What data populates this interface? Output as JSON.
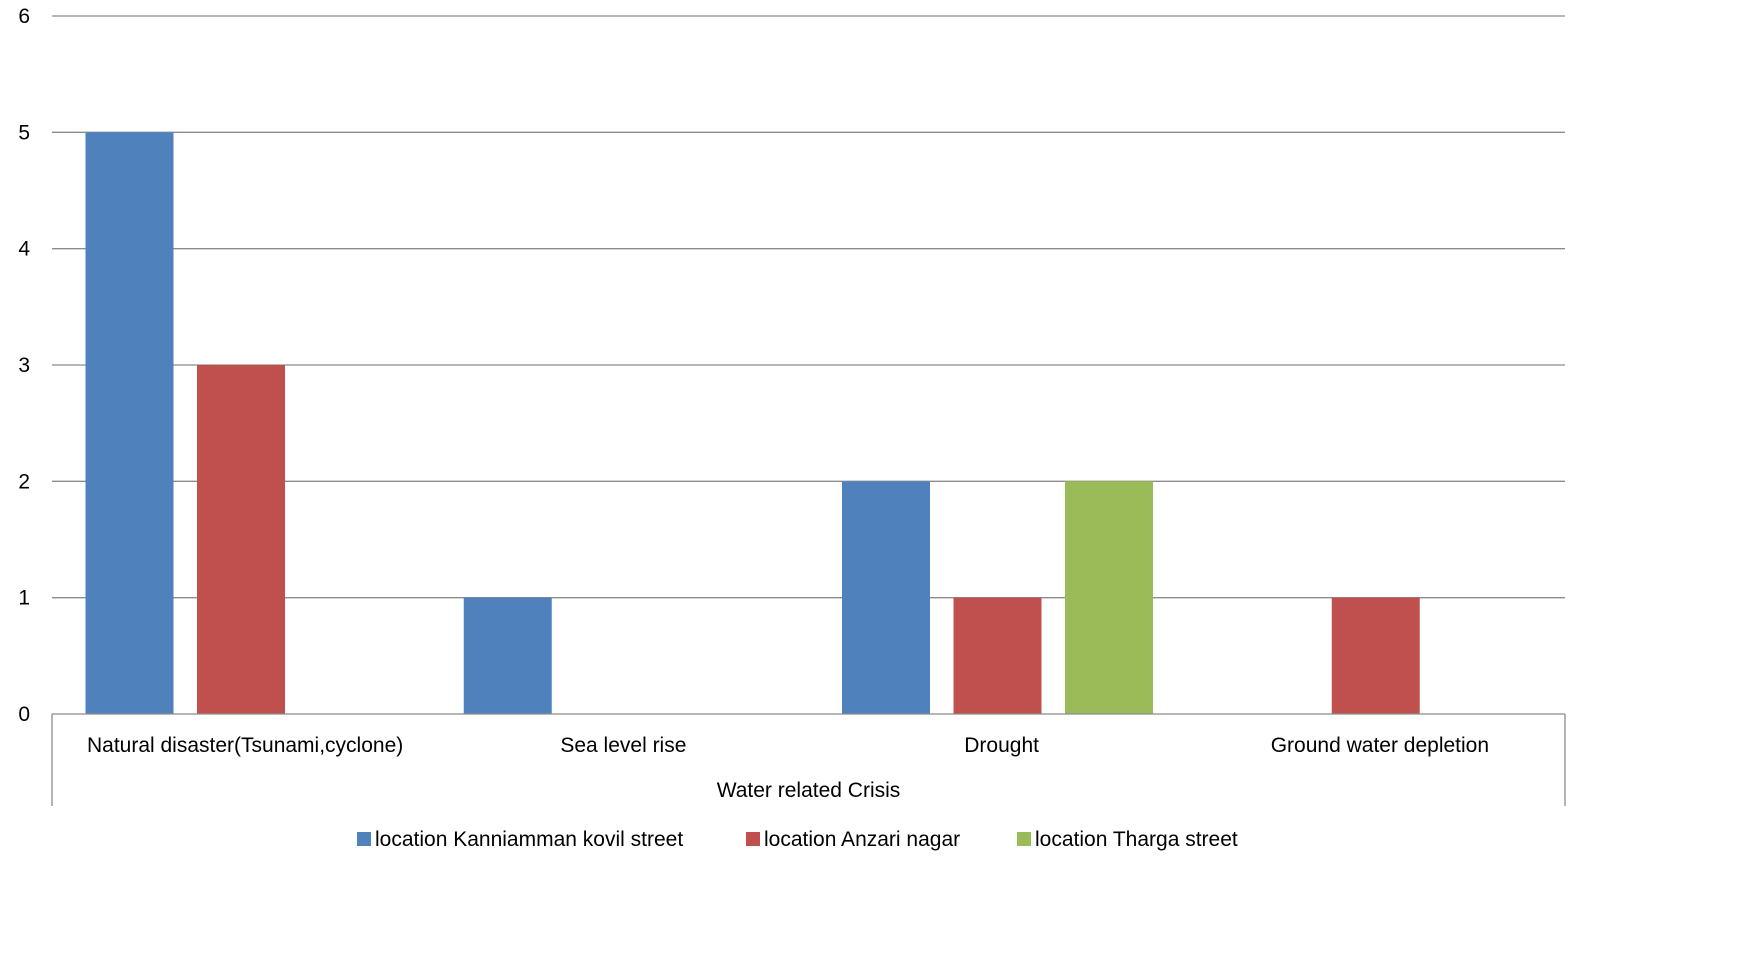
{
  "chart_data": {
    "type": "bar",
    "categories": [
      "Natural disaster(Tsunami,cyclone)",
      "Sea level rise",
      "Drought",
      "Ground water depletion"
    ],
    "series": [
      {
        "name": "location Kanniamman kovil street",
        "values": [
          5,
          1,
          2,
          0
        ],
        "color": "#4F81BD"
      },
      {
        "name": "location Anzari nagar",
        "values": [
          3,
          0,
          1,
          1
        ],
        "color": "#C0504D"
      },
      {
        "name": "location Tharga street",
        "values": [
          0,
          0,
          2,
          0
        ],
        "color": "#9BBB59"
      }
    ],
    "xlabel": "Water related Crisis",
    "ylabel": "",
    "ylim": [
      0,
      6
    ],
    "yticks": [
      "0",
      "1",
      "2",
      "3",
      "4",
      "5",
      "6"
    ],
    "grid": true,
    "legend": "bottom"
  }
}
